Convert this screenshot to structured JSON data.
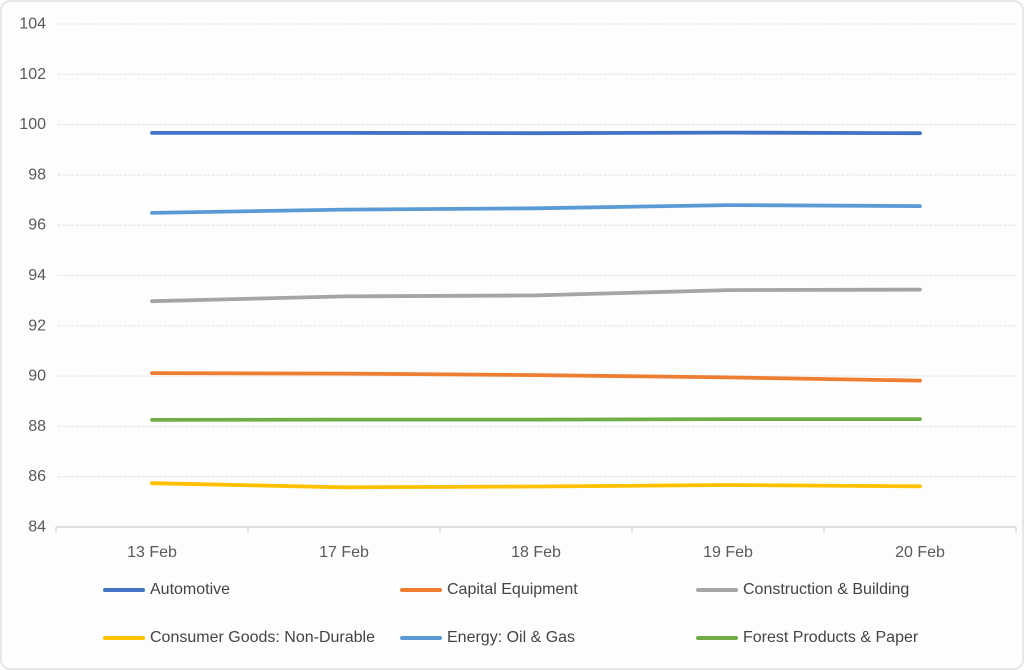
{
  "chart_data": {
    "type": "line",
    "categories": [
      "13 Feb",
      "17 Feb",
      "18 Feb",
      "19 Feb",
      "20 Feb"
    ],
    "series": [
      {
        "name": "Automotive",
        "color": "#4472C4",
        "values": [
          99.67,
          99.67,
          99.66,
          99.68,
          99.66
        ]
      },
      {
        "name": "Capital Equipment",
        "color": "#ED7D31",
        "values": [
          90.12,
          90.1,
          90.04,
          89.95,
          89.82
        ]
      },
      {
        "name": "Construction & Building",
        "color": "#A5A5A5",
        "values": [
          92.98,
          93.17,
          93.21,
          93.42,
          93.44
        ]
      },
      {
        "name": "Consumer Goods: Non-Durable",
        "color": "#FFC000",
        "values": [
          85.74,
          85.58,
          85.61,
          85.67,
          85.62
        ]
      },
      {
        "name": "Energy: Oil & Gas",
        "color": "#5B9BD5",
        "values": [
          96.49,
          96.62,
          96.67,
          96.8,
          96.76
        ]
      },
      {
        "name": "Forest Products & Paper",
        "color": "#70AD47",
        "values": [
          88.26,
          88.27,
          88.27,
          88.29,
          88.29
        ]
      }
    ],
    "ylim": [
      84,
      104
    ],
    "ytick_step": 2,
    "ytick_labels": [
      "104",
      "102",
      "100",
      "98",
      "96",
      "94",
      "92",
      "90",
      "88",
      "86",
      "84"
    ],
    "grid": "horizontal",
    "legend_position": "bottom",
    "colors": {
      "axis_text": "#595959",
      "legend_text": "#444444",
      "gridline": "#e4e4e4",
      "axis_line": "#d4d4d4",
      "tick": "#d9d9d9",
      "background": "#fdfdfd",
      "frame_border": "#e6e6e6"
    }
  }
}
